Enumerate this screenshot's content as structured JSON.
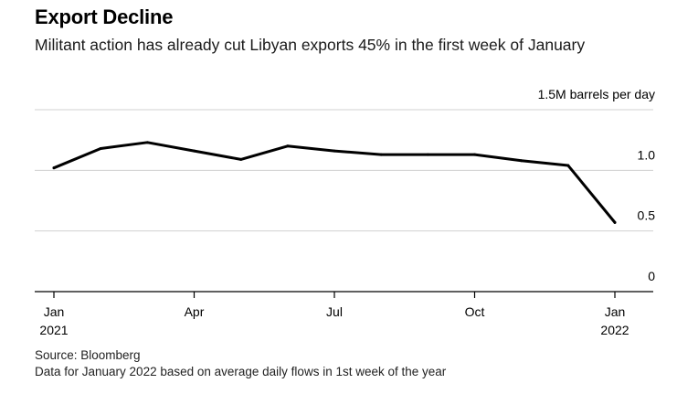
{
  "header": {
    "title": "Export Decline",
    "subtitle": "Militant action has already cut Libyan exports 45% in the first week of January"
  },
  "footer": {
    "source": "Source: Bloomberg",
    "note": "Data for January 2022 based on average daily flows in 1st week of the year"
  },
  "colors": {
    "line": "#000000",
    "grid": "#d0d0d0",
    "axis": "#000000",
    "text": "#000000"
  },
  "chart_data": {
    "type": "line",
    "title": "Export Decline",
    "subtitle": "Militant action has already cut Libyan exports 45% in the first week of January",
    "ylabel": "1.5M barrels per day",
    "xlabel": "",
    "ylim": [
      0,
      1.5
    ],
    "y_ticks": [
      {
        "value": 0,
        "label": "0"
      },
      {
        "value": 0.5,
        "label": "0.5"
      },
      {
        "value": 1.0,
        "label": "1.0"
      },
      {
        "value": 1.5,
        "label": "1.5M barrels per day"
      }
    ],
    "x_ticks": [
      {
        "x": "2021-01",
        "label": "Jan",
        "sublabel": "2021"
      },
      {
        "x": "2021-04",
        "label": "Apr",
        "sublabel": ""
      },
      {
        "x": "2021-07",
        "label": "Jul",
        "sublabel": ""
      },
      {
        "x": "2021-10",
        "label": "Oct",
        "sublabel": ""
      },
      {
        "x": "2022-01",
        "label": "Jan",
        "sublabel": "2022"
      }
    ],
    "grid": true,
    "legend": "none",
    "series": [
      {
        "x": [
          "2021-01",
          "2021-02",
          "2021-03",
          "2021-04",
          "2021-05",
          "2021-06",
          "2021-07",
          "2021-08",
          "2021-09",
          "2021-10",
          "2021-11",
          "2021-12",
          "2022-01"
        ],
        "values": [
          1.02,
          1.18,
          1.23,
          1.16,
          1.09,
          1.2,
          1.16,
          1.13,
          1.13,
          1.13,
          1.08,
          1.04,
          0.57
        ]
      }
    ]
  }
}
